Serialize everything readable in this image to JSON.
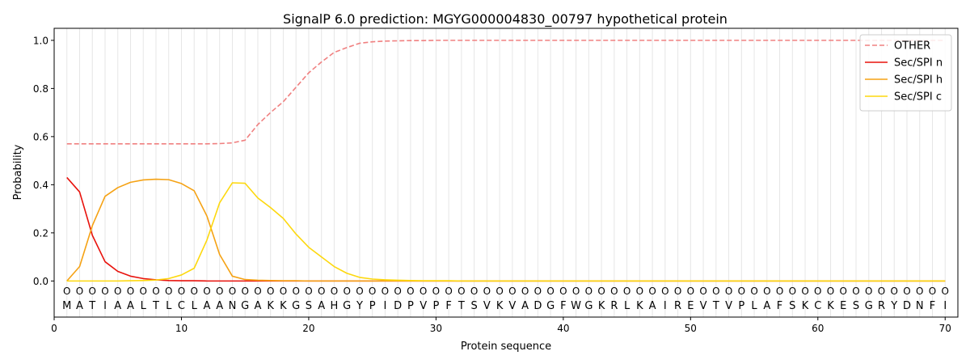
{
  "chart_data": {
    "type": "line",
    "title": "SignalP 6.0 prediction: MGYG000004830_00797 hypothetical protein",
    "xlabel": "Protein sequence",
    "ylabel": "Probability",
    "xlim": [
      0,
      71
    ],
    "ylim": [
      -0.15,
      1.05
    ],
    "x_ticks": [
      0,
      10,
      20,
      30,
      40,
      50,
      60,
      70
    ],
    "y_ticks": [
      0.0,
      0.2,
      0.4,
      0.6,
      0.8,
      1.0
    ],
    "y_tick_labels": [
      "0.0",
      "0.2",
      "0.4",
      "0.6",
      "0.8",
      "1.0"
    ],
    "legend_position": "top-right",
    "sequence": [
      "M",
      "A",
      "T",
      "I",
      "A",
      "A",
      "L",
      "T",
      "L",
      "C",
      "L",
      "A",
      "A",
      "N",
      "G",
      "A",
      "K",
      "K",
      "G",
      "S",
      "A",
      "H",
      "G",
      "Y",
      "P",
      "I",
      "D",
      "P",
      "V",
      "P",
      "F",
      "T",
      "S",
      "V",
      "K",
      "V",
      "A",
      "D",
      "G",
      "F",
      "W",
      "G",
      "K",
      "R",
      "L",
      "K",
      "A",
      "I",
      "R",
      "E",
      "V",
      "T",
      "V",
      "P",
      "L",
      "A",
      "F",
      "S",
      "K",
      "C",
      "K",
      "E",
      "S",
      "G",
      "R",
      "Y",
      "D",
      "N",
      "F",
      "I"
    ],
    "predicted_labels": [
      "O",
      "O",
      "O",
      "O",
      "O",
      "O",
      "O",
      "O",
      "O",
      "O",
      "O",
      "O",
      "O",
      "O",
      "O",
      "O",
      "O",
      "O",
      "O",
      "O",
      "O",
      "O",
      "O",
      "O",
      "O",
      "O",
      "O",
      "O",
      "O",
      "O",
      "O",
      "O",
      "O",
      "O",
      "O",
      "O",
      "O",
      "O",
      "O",
      "O",
      "O",
      "O",
      "O",
      "O",
      "O",
      "O",
      "O",
      "O",
      "O",
      "O",
      "O",
      "O",
      "O",
      "O",
      "O",
      "O",
      "O",
      "O",
      "O",
      "O",
      "O",
      "O",
      "O",
      "O",
      "O",
      "O",
      "O",
      "O",
      "O",
      "O"
    ],
    "series": [
      {
        "name": "OTHER",
        "color": "#f08080",
        "dashed": true,
        "values": [
          0.57,
          0.57,
          0.57,
          0.57,
          0.57,
          0.57,
          0.57,
          0.57,
          0.57,
          0.57,
          0.57,
          0.57,
          0.571,
          0.574,
          0.585,
          0.65,
          0.7,
          0.745,
          0.805,
          0.865,
          0.91,
          0.95,
          0.97,
          0.988,
          0.994,
          0.997,
          0.998,
          0.999,
          0.999,
          1,
          1,
          1,
          1,
          1,
          1,
          1,
          1,
          1,
          1,
          1,
          1,
          1,
          1,
          1,
          1,
          1,
          1,
          1,
          1,
          1,
          1,
          1,
          1,
          1,
          1,
          1,
          1,
          1,
          1,
          1,
          1,
          1,
          1,
          1,
          1,
          1,
          1,
          1,
          1,
          1
        ]
      },
      {
        "name": "Sec/SPI n",
        "color": "#e8120c",
        "dashed": false,
        "values": [
          0.43,
          0.37,
          0.19,
          0.08,
          0.04,
          0.02,
          0.01,
          0.005,
          0.002,
          0.001,
          0.001,
          0,
          0,
          0,
          0,
          0,
          0,
          0,
          0,
          0,
          0,
          0,
          0,
          0,
          0,
          0,
          0,
          0,
          0,
          0,
          0,
          0,
          0,
          0,
          0,
          0,
          0,
          0,
          0,
          0,
          0,
          0,
          0,
          0,
          0,
          0,
          0,
          0,
          0,
          0,
          0,
          0,
          0,
          0,
          0,
          0,
          0,
          0,
          0,
          0,
          0,
          0,
          0,
          0,
          0,
          0,
          0,
          0,
          0,
          0
        ]
      },
      {
        "name": "Sec/SPI h",
        "color": "#f5a214",
        "dashed": false,
        "values": [
          0.0,
          0.06,
          0.23,
          0.352,
          0.388,
          0.41,
          0.42,
          0.423,
          0.421,
          0.405,
          0.375,
          0.27,
          0.11,
          0.02,
          0.006,
          0.003,
          0.002,
          0.001,
          0.001,
          0,
          0,
          0,
          0,
          0,
          0,
          0,
          0,
          0,
          0,
          0,
          0,
          0,
          0,
          0,
          0,
          0,
          0,
          0,
          0,
          0,
          0,
          0,
          0,
          0,
          0,
          0,
          0,
          0,
          0,
          0,
          0,
          0,
          0,
          0,
          0,
          0,
          0,
          0,
          0,
          0,
          0,
          0,
          0,
          0,
          0,
          0,
          0,
          0,
          0,
          0
        ]
      },
      {
        "name": "Sec/SPI c",
        "color": "#fdd80e",
        "dashed": false,
        "values": [
          0.0,
          0.0,
          0.0,
          0.0,
          0.0,
          0.001,
          0.002,
          0.004,
          0.01,
          0.025,
          0.053,
          0.17,
          0.325,
          0.408,
          0.406,
          0.345,
          0.305,
          0.26,
          0.195,
          0.14,
          0.1,
          0.06,
          0.032,
          0.015,
          0.008,
          0.005,
          0.003,
          0.002,
          0.001,
          0.001,
          0.001,
          0,
          0,
          0,
          0,
          0,
          0,
          0,
          0,
          0,
          0,
          0,
          0,
          0,
          0,
          0,
          0,
          0,
          0,
          0,
          0,
          0,
          0,
          0,
          0,
          0,
          0,
          0,
          0,
          0,
          0,
          0,
          0,
          0,
          0,
          0,
          0,
          0,
          0,
          0
        ]
      }
    ]
  }
}
